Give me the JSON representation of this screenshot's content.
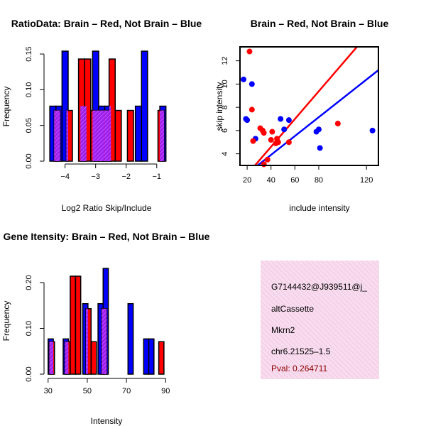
{
  "colors": {
    "red": "#ff0000",
    "blue": "#0000ff",
    "purple": "#a020f0",
    "pink_bg": "#f7dcee",
    "pval_text": "#8b0000"
  },
  "chart_data": [
    {
      "type": "bar",
      "title": "RatioData: Brain – Red, Not Brain – Blue",
      "xlabel": "Log2 Ratio Skip/Include",
      "ylabel": "Frequency",
      "xlim": [
        -4.55,
        -0.6
      ],
      "ylim": [
        0,
        0.16
      ],
      "xticks": [
        -4,
        -3,
        -2,
        -1
      ],
      "yticks": [
        0,
        0.05,
        0.1,
        0.15
      ],
      "xtick_labels": [
        "−4",
        "−3",
        "−2",
        "−1"
      ],
      "ytick_labels": [
        "0.00",
        "0.05",
        "0.10",
        "0.15"
      ],
      "series": [
        {
          "name": "Not Brain",
          "color": "blue",
          "bin_width": 0.2,
          "bins": [
            {
              "x0": -4.5,
              "value": 0.077
            },
            {
              "x0": -4.3,
              "value": 0.077
            },
            {
              "x0": -4.1,
              "value": 0.154
            },
            {
              "x0": -3.5,
              "value": 0.077
            },
            {
              "x0": -3.1,
              "value": 0.154
            },
            {
              "x0": -2.9,
              "value": 0.077
            },
            {
              "x0": -2.7,
              "value": 0.077
            },
            {
              "x0": -1.7,
              "value": 0.077
            },
            {
              "x0": -1.5,
              "value": 0.154
            },
            {
              "x0": -0.9,
              "value": 0.077
            }
          ]
        },
        {
          "name": "Brain",
          "color": "red",
          "bin_width": 0.2,
          "bins": [
            {
              "x0": -4.36,
              "value": 0.071
            },
            {
              "x0": -3.96,
              "value": 0.071
            },
            {
              "x0": -3.56,
              "value": 0.143
            },
            {
              "x0": -3.36,
              "value": 0.143
            },
            {
              "x0": -3.16,
              "value": 0.071
            },
            {
              "x0": -2.96,
              "value": 0.071
            },
            {
              "x0": -2.76,
              "value": 0.071
            },
            {
              "x0": -2.56,
              "value": 0.143
            },
            {
              "x0": -2.36,
              "value": 0.071
            },
            {
              "x0": -1.96,
              "value": 0.071
            },
            {
              "x0": -0.96,
              "value": 0.071
            }
          ]
        }
      ]
    },
    {
      "type": "scatter",
      "title": "Brain – Red, Not Brain – Blue",
      "xlabel": "include intensity",
      "ylabel": "skip intensity",
      "xlim": [
        14,
        130
      ],
      "ylim": [
        3,
        13.2
      ],
      "xticks": [
        20,
        40,
        60,
        80,
        120
      ],
      "yticks": [
        4,
        6,
        8,
        10,
        12
      ],
      "series": [
        {
          "name": "Not Brain",
          "color": "blue",
          "points": [
            [
              17,
              10.4
            ],
            [
              19,
              7.0
            ],
            [
              20,
              6.9
            ],
            [
              24,
              10.0
            ],
            [
              27,
              5.3
            ],
            [
              48,
              7.0
            ],
            [
              51,
              6.1
            ],
            [
              55,
              6.9
            ],
            [
              78,
              5.9
            ],
            [
              80,
              6.1
            ],
            [
              81,
              4.5
            ],
            [
              125,
              6.0
            ]
          ],
          "fit": [
            [
              14,
              1.8
            ],
            [
              130,
              11.2
            ]
          ]
        },
        {
          "name": "Brain",
          "color": "red",
          "points": [
            [
              22,
              12.8
            ],
            [
              24,
              7.8
            ],
            [
              25,
              5.1
            ],
            [
              31,
              6.2
            ],
            [
              33,
              6.0
            ],
            [
              34,
              5.8
            ],
            [
              34,
              3.1
            ],
            [
              37,
              3.5
            ],
            [
              40,
              5.2
            ],
            [
              41,
              5.9
            ],
            [
              44,
              4.9
            ],
            [
              45,
              5.3
            ],
            [
              46,
              5.0
            ],
            [
              55,
              5.0
            ],
            [
              96,
              6.6
            ]
          ],
          "fit": [
            [
              14,
              1.5
            ],
            [
              112,
              13.2
            ]
          ]
        }
      ]
    },
    {
      "type": "bar",
      "title": "Gene Itensity: Brain – Red, Not Brain – Blue",
      "xlabel": "Intensity",
      "ylabel": "Frequency",
      "xlim": [
        29,
        91
      ],
      "ylim": [
        0,
        0.245
      ],
      "xticks": [
        30,
        50,
        70,
        90
      ],
      "yticks": [
        0,
        0.1,
        0.2
      ],
      "xtick_labels": [
        "30",
        "50",
        "70",
        "90"
      ],
      "ytick_labels": [
        "0.00",
        "0.10",
        "0.20"
      ],
      "series": [
        {
          "name": "Not Brain",
          "color": "blue",
          "bin_width": 2.65,
          "bins": [
            {
              "x0": 30.0,
              "value": 0.077
            },
            {
              "x0": 37.7,
              "value": 0.077
            },
            {
              "x0": 47.7,
              "value": 0.154
            },
            {
              "x0": 55.5,
              "value": 0.154
            },
            {
              "x0": 58.1,
              "value": 0.231
            },
            {
              "x0": 70.8,
              "value": 0.154
            },
            {
              "x0": 78.8,
              "value": 0.077
            },
            {
              "x0": 81.4,
              "value": 0.077
            }
          ]
        },
        {
          "name": "Brain",
          "color": "red",
          "bin_width": 2.65,
          "bins": [
            {
              "x0": 30.6,
              "value": 0.071
            },
            {
              "x0": 38.6,
              "value": 0.071
            },
            {
              "x0": 41.3,
              "value": 0.214
            },
            {
              "x0": 44.0,
              "value": 0.214
            },
            {
              "x0": 49.3,
              "value": 0.143
            },
            {
              "x0": 52.0,
              "value": 0.071
            },
            {
              "x0": 57.3,
              "value": 0.143
            },
            {
              "x0": 86.5,
              "value": 0.071
            }
          ]
        }
      ]
    }
  ],
  "info_panel": {
    "event_id": "G7144432@J939511@j_",
    "event_type": "altCassette",
    "gene": "Mkrn2",
    "location": "chr6.21525–1.5",
    "pval": "Pval: 0.264711"
  }
}
